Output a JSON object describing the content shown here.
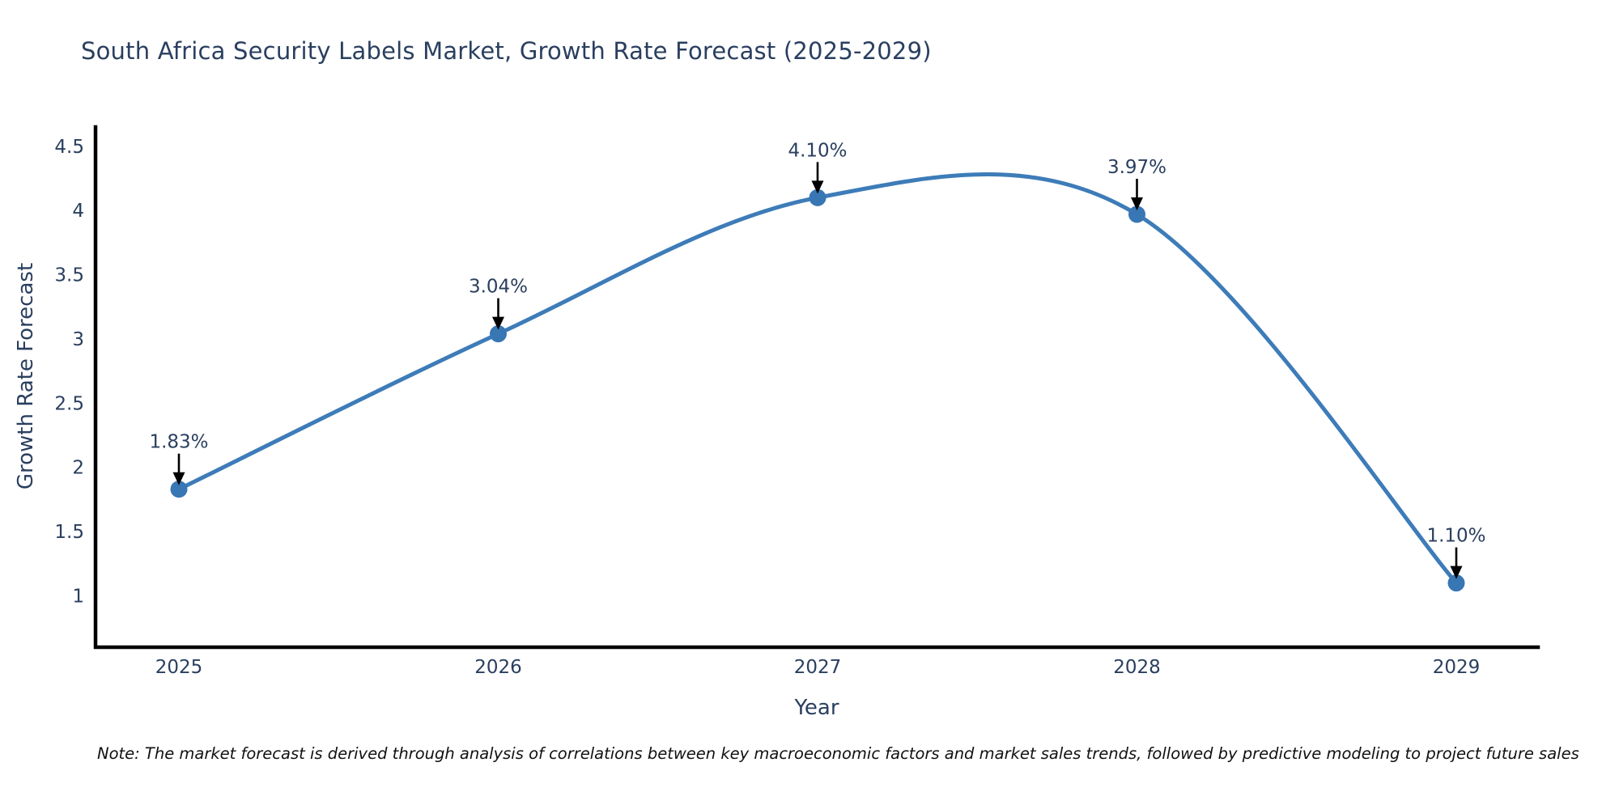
{
  "page": {
    "background": "#ffffff"
  },
  "title": {
    "text": "South Africa Security Labels Market, Growth Rate Forecast (2025-2029)",
    "color": "#2a3f5f"
  },
  "note": {
    "text": "Note: The market forecast is derived through analysis of correlations between key macroeconomic factors and market sales trends, followed by predictive modeling to project future sales"
  },
  "chart_data": {
    "type": "line",
    "line_shape": "spline",
    "title": "South Africa Security Labels Market, Growth Rate Forecast (2025-2029)",
    "categories": [
      "2025",
      "2026",
      "2027",
      "2028",
      "2029"
    ],
    "series": [
      {
        "name": "Growth Rate Forecast",
        "values": [
          1.83,
          3.04,
          4.1,
          3.97,
          1.1
        ],
        "point_labels": [
          "1.83%",
          "3.04%",
          "4.10%",
          "3.97%",
          "1.10%"
        ]
      }
    ],
    "xlabel": "Year",
    "ylabel": "Growth Rate Forecast",
    "ytick_values": [
      1,
      1.5,
      2,
      2.5,
      3,
      3.5,
      4,
      4.5
    ],
    "ytick_labels": [
      "1",
      "1.5",
      "2",
      "2.5",
      "3",
      "3.5",
      "4",
      "4.5"
    ],
    "ylim": [
      0.6,
      4.65
    ],
    "grid": false,
    "legend": false,
    "colors": {
      "line": "#3d7cb8",
      "marker": "#3876b4",
      "arrow": "#000000",
      "axis": "#000000",
      "tick_text": "#2a3f5f",
      "label_text": "#2a3f5f"
    }
  }
}
